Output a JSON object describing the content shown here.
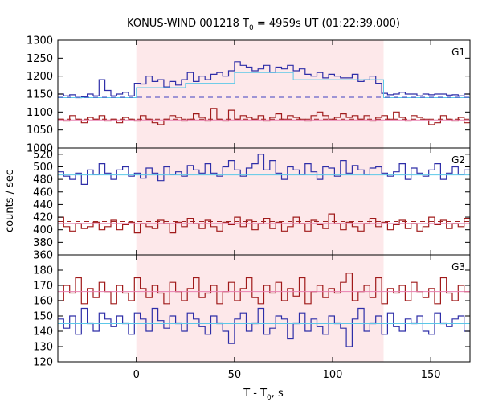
{
  "chart_data": {
    "type": "line",
    "title_main": "KONUS-WIND 001218 T",
    "title_sub": "0",
    "title_rest": " = 4959s UT (01:22:39.000)",
    "xlabel_main": "T - T",
    "xlabel_sub": "0",
    "xlabel_rest": ", s",
    "ylabel": "counts / sec",
    "xlim": [
      -40,
      170
    ],
    "x_ticks": [
      0,
      50,
      100,
      150
    ],
    "x_tick_labels": [
      "0",
      "50",
      "100",
      "150"
    ],
    "highlight_interval": [
      0,
      126
    ],
    "colors": {
      "blue_series": "#2e2ea8",
      "red_series": "#a01a1a",
      "cyan_fit": "#5cc8e8",
      "pink_fit": "#e880b0",
      "highlight": "#fde8ea",
      "blue_dash": "#4040c0",
      "red_dash": "#a02020"
    },
    "panels": [
      {
        "label": "G1",
        "ylim": [
          1000,
          1300
        ],
        "y_ticks": [
          1000,
          1050,
          1100,
          1150,
          1200,
          1250,
          1300
        ],
        "y_tick_labels": [
          "1000",
          "1050",
          "1100",
          "1150",
          "1200",
          "1250",
          "1300"
        ],
        "blue": {
          "x0": -40,
          "dx": 3,
          "values": [
            1150,
            1145,
            1148,
            1140,
            1142,
            1150,
            1145,
            1190,
            1160,
            1145,
            1150,
            1155,
            1145,
            1148,
            1150,
            1152,
            1148,
            1165,
            1155,
            1150,
            1145,
            1150,
            1148,
            1155,
            1150,
            1145,
            1148,
            1150,
            1150,
            1145,
            1148,
            1152,
            1150,
            1145,
            1150,
            1150,
            1148,
            1145,
            1152,
            1150,
            1148,
            1145,
            1150,
            1147,
            1148,
            1145,
            1150,
            1148,
            1150,
            1165,
            1150,
            1145,
            1152,
            1150,
            1155,
            1152,
            1148,
            1150,
            1155,
            1150,
            1150,
            1145,
            1150,
            1148,
            1150,
            1150,
            1147,
            1148,
            1145,
            1150
          ],
          "overrides": [
            [
              0,
              1180
            ],
            [
              3,
              1178
            ],
            [
              6,
              1200
            ],
            [
              9,
              1185
            ],
            [
              12,
              1190
            ],
            [
              15,
              1170
            ],
            [
              18,
              1185
            ],
            [
              21,
              1175
            ],
            [
              24,
              1190
            ],
            [
              27,
              1210
            ],
            [
              30,
              1185
            ],
            [
              33,
              1200
            ],
            [
              36,
              1190
            ],
            [
              39,
              1205
            ],
            [
              42,
              1210
            ],
            [
              45,
              1200
            ],
            [
              48,
              1215
            ],
            [
              51,
              1240
            ],
            [
              54,
              1230
            ],
            [
              57,
              1225
            ],
            [
              60,
              1215
            ],
            [
              63,
              1220
            ],
            [
              66,
              1230
            ],
            [
              69,
              1210
            ],
            [
              72,
              1225
            ],
            [
              75,
              1220
            ],
            [
              78,
              1230
            ],
            [
              81,
              1215
            ],
            [
              84,
              1220
            ],
            [
              87,
              1205
            ],
            [
              90,
              1200
            ],
            [
              93,
              1210
            ],
            [
              96,
              1195
            ],
            [
              99,
              1205
            ],
            [
              102,
              1200
            ],
            [
              105,
              1195
            ],
            [
              108,
              1195
            ],
            [
              111,
              1205
            ],
            [
              114,
              1185
            ],
            [
              117,
              1190
            ],
            [
              120,
              1200
            ],
            [
              123,
              1180
            ]
          ]
        },
        "red": {
          "x0": -40,
          "dx": 3,
          "values": [
            1080,
            1075,
            1090,
            1080,
            1070,
            1085,
            1080,
            1090,
            1075,
            1080,
            1070,
            1085,
            1080,
            1075,
            1090,
            1080,
            1070,
            1065,
            1080,
            1090,
            1085,
            1075,
            1080,
            1095,
            1085,
            1075,
            1110,
            1080,
            1075,
            1105,
            1080,
            1090,
            1085,
            1080,
            1090,
            1075,
            1085,
            1095,
            1080,
            1090,
            1085,
            1080,
            1075,
            1090,
            1100,
            1090,
            1080,
            1085,
            1095,
            1085,
            1090,
            1080,
            1090,
            1075,
            1085,
            1090,
            1080,
            1100,
            1085,
            1075,
            1090,
            1085,
            1080,
            1065,
            1070,
            1090,
            1080,
            1075,
            1085,
            1070
          ]
        },
        "cyan_fit": [
          [
            -40,
            1140
          ],
          [
            0,
            1140
          ],
          [
            0,
            1168
          ],
          [
            25,
            1168
          ],
          [
            25,
            1180
          ],
          [
            50,
            1180
          ],
          [
            50,
            1210
          ],
          [
            80,
            1210
          ],
          [
            80,
            1190
          ],
          [
            126,
            1190
          ],
          [
            126,
            1140
          ],
          [
            170,
            1140
          ]
        ],
        "pink_fit": [
          [
            -40,
            1078
          ],
          [
            170,
            1078
          ]
        ],
        "blue_dash": 1141,
        "red_dash": 1080
      },
      {
        "label": "G2",
        "ylim": [
          360,
          530
        ],
        "y_ticks": [
          360,
          380,
          400,
          420,
          440,
          460,
          480,
          500,
          520
        ],
        "y_tick_labels": [
          "360",
          "380",
          "400",
          "420",
          "440",
          "460",
          "480",
          "500",
          "520"
        ],
        "blue": {
          "x0": -40,
          "dx": 3,
          "values": [
            492,
            485,
            480,
            490,
            472,
            495,
            488,
            505,
            490,
            480,
            495,
            500,
            485,
            490,
            482,
            498,
            490,
            478,
            500,
            488,
            492,
            485,
            502,
            495,
            490,
            505,
            490,
            485,
            500,
            510,
            495,
            485,
            498,
            505,
            520,
            495,
            510,
            490,
            480,
            500,
            495,
            488,
            505,
            492,
            480,
            500,
            498,
            485,
            510,
            490,
            502,
            495,
            488,
            498,
            500,
            490,
            485,
            492,
            505,
            480,
            498,
            490,
            485,
            495,
            505,
            480,
            490,
            500,
            488,
            495
          ]
        },
        "red": {
          "x0": -40,
          "dx": 3,
          "values": [
            420,
            405,
            398,
            410,
            402,
            405,
            412,
            400,
            405,
            415,
            400,
            408,
            412,
            395,
            410,
            405,
            402,
            415,
            410,
            395,
            412,
            405,
            418,
            410,
            402,
            415,
            405,
            398,
            412,
            408,
            420,
            405,
            415,
            400,
            410,
            418,
            402,
            412,
            398,
            405,
            420,
            410,
            398,
            415,
            408,
            402,
            425,
            410,
            400,
            412,
            405,
            398,
            410,
            418,
            405,
            412,
            400,
            408,
            415,
            402,
            410,
            398,
            405,
            420,
            408,
            415,
            402,
            410,
            405,
            418
          ]
        },
        "cyan_fit": [
          [
            -40,
            487
          ],
          [
            170,
            487
          ]
        ],
        "pink_fit": [
          [
            -40,
            410
          ],
          [
            170,
            410
          ]
        ],
        "blue_dash": null,
        "red_dash": 413
      },
      {
        "label": "G3",
        "ylim": [
          120,
          190
        ],
        "y_ticks": [
          120,
          130,
          140,
          150,
          160,
          170,
          180
        ],
        "y_tick_labels": [
          "120",
          "130",
          "140",
          "150",
          "160",
          "170",
          "180"
        ],
        "blue": {
          "x0": -40,
          "dx": 3,
          "values": [
            148,
            142,
            150,
            138,
            155,
            145,
            140,
            152,
            148,
            143,
            150,
            145,
            138,
            152,
            148,
            140,
            155,
            147,
            142,
            150,
            145,
            140,
            152,
            148,
            143,
            138,
            150,
            145,
            140,
            132,
            148,
            152,
            140,
            145,
            155,
            138,
            142,
            150,
            148,
            135,
            145,
            152,
            140,
            148,
            143,
            138,
            150,
            145,
            142,
            130,
            148,
            155,
            140,
            145,
            150,
            138,
            152,
            143,
            140,
            148,
            145,
            150,
            140,
            138,
            152,
            145,
            143,
            148,
            150,
            140
          ]
        },
        "red": {
          "x0": -40,
          "dx": 3,
          "values": [
            160,
            170,
            165,
            175,
            158,
            168,
            162,
            172,
            166,
            158,
            170,
            165,
            160,
            175,
            168,
            162,
            170,
            165,
            158,
            172,
            166,
            160,
            168,
            175,
            162,
            165,
            170,
            158,
            166,
            172,
            160,
            168,
            175,
            162,
            158,
            170,
            165,
            172,
            160,
            168,
            163,
            175,
            158,
            166,
            170,
            162,
            168,
            165,
            172,
            178,
            160,
            166,
            170,
            162,
            175,
            158,
            168,
            165,
            170,
            160,
            172,
            166,
            162,
            168,
            158,
            175,
            165,
            160,
            170,
            166
          ]
        },
        "cyan_fit": [
          [
            -40,
            145
          ],
          [
            170,
            145
          ]
        ],
        "pink_fit": [
          [
            -40,
            166
          ],
          [
            170,
            166
          ]
        ],
        "blue_dash": null,
        "red_dash": null
      }
    ]
  }
}
